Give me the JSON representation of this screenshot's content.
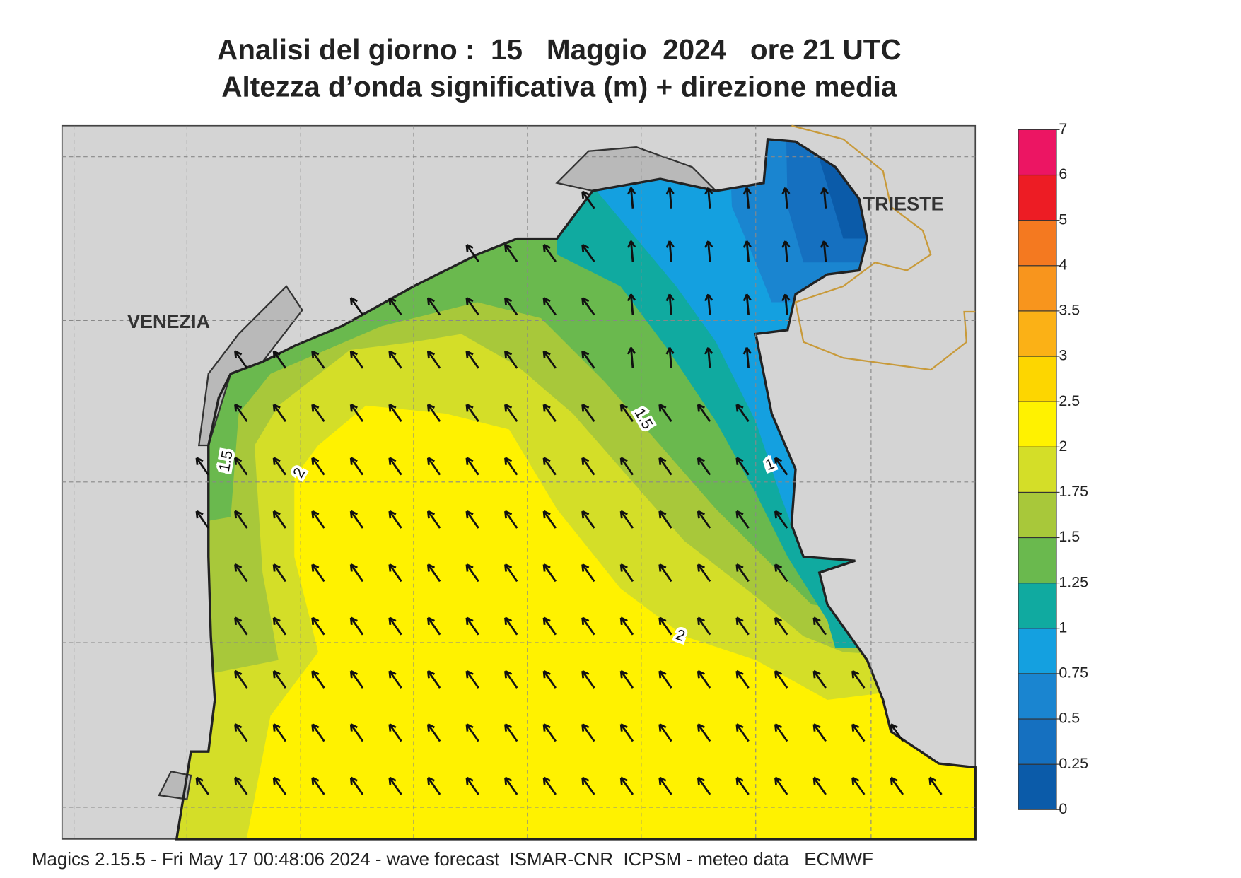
{
  "header": {
    "title": "Analisi del giorno :  15   Maggio  2024   ore 21 UTC",
    "subtitle": "Altezza d’onda significativa (m) + direzione media"
  },
  "map": {
    "places": [
      "VENEZIA",
      "TRIESTE"
    ],
    "contour_labels": [
      "1.5",
      "2",
      "1.5",
      "2",
      "1"
    ]
  },
  "colorbar": {
    "levels": [
      0,
      0.25,
      0.5,
      0.75,
      1,
      1.25,
      1.5,
      1.75,
      2,
      2.5,
      3,
      3.5,
      4,
      5,
      6,
      7
    ],
    "colors": [
      "#0b5ba9",
      "#1570c0",
      "#1a85d0",
      "#14a0e0",
      "#10aaa0",
      "#6ab94e",
      "#a8c83a",
      "#d4de28",
      "#fff200",
      "#fdd600",
      "#fbb116",
      "#f8951d",
      "#f47920",
      "#ed1c24",
      "#ec1563"
    ]
  },
  "footer": "Magics 2.15.5 - Fri May 17 00:48:06 2024 - wave forecast  ISMAR-CNR  ICPSM - meteo data   ECMWF"
}
